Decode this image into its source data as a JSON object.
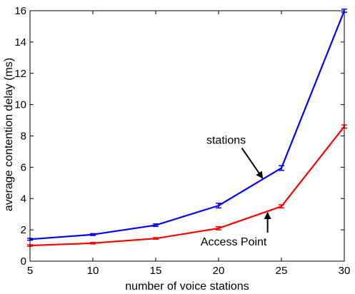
{
  "chart_data": {
    "type": "line",
    "title": "",
    "xlabel": "number of voice stations",
    "ylabel": "average contention delay (ms)",
    "xlim": [
      5,
      30
    ],
    "ylim": [
      0,
      16
    ],
    "x_ticks": [
      5,
      10,
      15,
      20,
      25,
      30
    ],
    "y_ticks": [
      0,
      2,
      4,
      6,
      8,
      10,
      12,
      14,
      16
    ],
    "grid": false,
    "legend": "none",
    "x": [
      5,
      10,
      15,
      20,
      25,
      30
    ],
    "series": [
      {
        "color": "#0000ff",
        "values": [
          1.4,
          1.7,
          2.3,
          3.55,
          5.95,
          16.0
        ],
        "errors": [
          0.06,
          0.06,
          0.08,
          0.15,
          0.15,
          0.1
        ]
      },
      {
        "color": "#ff0000",
        "values": [
          1.0,
          1.15,
          1.45,
          2.1,
          3.5,
          8.6
        ],
        "errors": [
          0.05,
          0.05,
          0.05,
          0.1,
          0.1,
          0.1
        ]
      }
    ],
    "annotations": [
      {
        "text": "stations",
        "x": 20.6,
        "y": 7.5,
        "arrow_to": [
          23.5,
          5.3
        ]
      },
      {
        "text": "Access Point",
        "x": 21.2,
        "y": 1.0,
        "arrow_to": [
          23.9,
          3.1
        ]
      }
    ]
  }
}
